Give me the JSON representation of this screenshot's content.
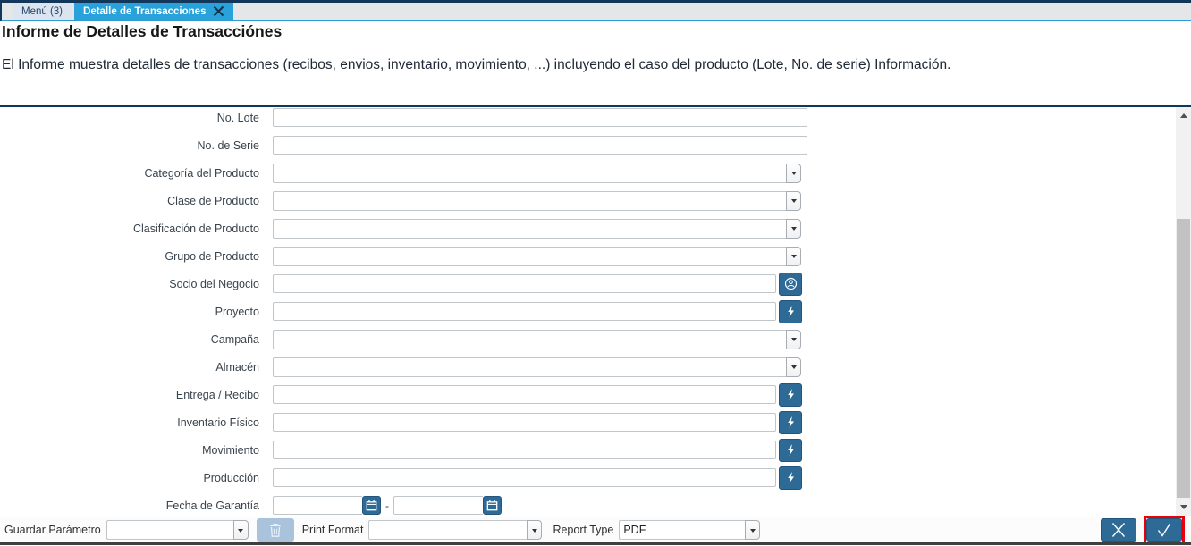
{
  "window": {
    "tabs": {
      "menu": {
        "label": "Menú (3)"
      },
      "active": {
        "label": "Detalle de Transacciones"
      }
    }
  },
  "header": {
    "title": "Informe de Detalles de Transacciónes",
    "description": "El Informe muestra detalles de transacciones (recibos, envios, inventario, movimiento, ...) incluyendo el caso del producto (Lote, No. de serie) Información."
  },
  "form": {
    "date_separator": "-",
    "rows": [
      {
        "name": "no-lote",
        "label": "No. Lote",
        "type": "text",
        "value": ""
      },
      {
        "name": "no-de-serie",
        "label": "No. de Serie",
        "type": "text",
        "value": ""
      },
      {
        "name": "categoria-del-producto",
        "label": "Categoría del Producto",
        "type": "combo",
        "value": ""
      },
      {
        "name": "clase-de-producto",
        "label": "Clase de Producto",
        "type": "combo",
        "value": ""
      },
      {
        "name": "clasificacion-de-producto",
        "label": "Clasificación de Producto",
        "type": "combo",
        "value": ""
      },
      {
        "name": "grupo-de-producto",
        "label": "Grupo de Producto",
        "type": "combo",
        "value": ""
      },
      {
        "name": "socio-del-negocio",
        "label": "Socio del Negocio",
        "type": "search",
        "icon": "business-partner-icon",
        "value": ""
      },
      {
        "name": "proyecto",
        "label": "Proyecto",
        "type": "search",
        "icon": "record-search-icon",
        "value": ""
      },
      {
        "name": "campana",
        "label": "Campaña",
        "type": "combo",
        "value": ""
      },
      {
        "name": "almacen",
        "label": "Almacén",
        "type": "combo",
        "value": ""
      },
      {
        "name": "entrega-recibo",
        "label": "Entrega / Recibo",
        "type": "search",
        "icon": "record-search-icon",
        "value": ""
      },
      {
        "name": "inventario-fisico",
        "label": "Inventario Físico",
        "type": "search",
        "icon": "record-search-icon",
        "value": ""
      },
      {
        "name": "movimiento",
        "label": "Movimiento",
        "type": "search",
        "icon": "record-search-icon",
        "value": ""
      },
      {
        "name": "produccion",
        "label": "Producción",
        "type": "search",
        "icon": "record-search-icon",
        "value": ""
      },
      {
        "name": "fecha-de-garantia",
        "label": "Fecha de Garantía",
        "type": "daterange",
        "from": "",
        "to": ""
      }
    ]
  },
  "footer": {
    "save_param_label": "Guardar Parámetro",
    "save_param_value": "",
    "print_format_label": "Print Format",
    "print_format_value": "",
    "report_type_label": "Report Type",
    "report_type_value": "PDF"
  },
  "colors": {
    "accent_tab": "#29a1da",
    "button_blue": "#2e6a96",
    "trash_blue": "#a9c3dc",
    "highlight_red": "#e8000a",
    "divider_navy": "#12375a"
  }
}
